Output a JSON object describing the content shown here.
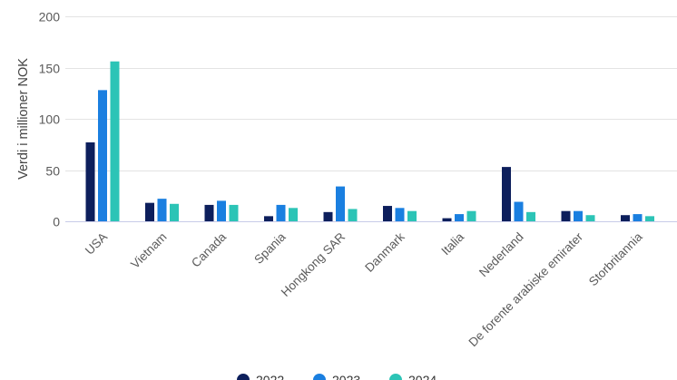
{
  "chart_data": {
    "type": "bar",
    "title": "",
    "xlabel": "",
    "ylabel": "Verdi i millioner NOK",
    "ylim": [
      0,
      200
    ],
    "yticks": [
      0,
      50,
      100,
      150,
      200
    ],
    "grid": true,
    "legend_position": "bottom",
    "categories": [
      "USA",
      "Vietnam",
      "Canada",
      "Spania",
      "Hongkong SAR",
      "Danmark",
      "Italia",
      "Nederland",
      "De forente arabiske emirater",
      "Storbritannia"
    ],
    "series": [
      {
        "name": "2022",
        "color": "#0d1f5c",
        "values": [
          77,
          18,
          16,
          5,
          9,
          15,
          3,
          53,
          10,
          6
        ]
      },
      {
        "name": "2023",
        "color": "#1a7fe0",
        "values": [
          128,
          22,
          20,
          16,
          34,
          13,
          7,
          19,
          10,
          7
        ]
      },
      {
        "name": "2024",
        "color": "#2cc4b6",
        "values": [
          156,
          17,
          16,
          13,
          12,
          10,
          10,
          9,
          6,
          5
        ]
      }
    ]
  }
}
